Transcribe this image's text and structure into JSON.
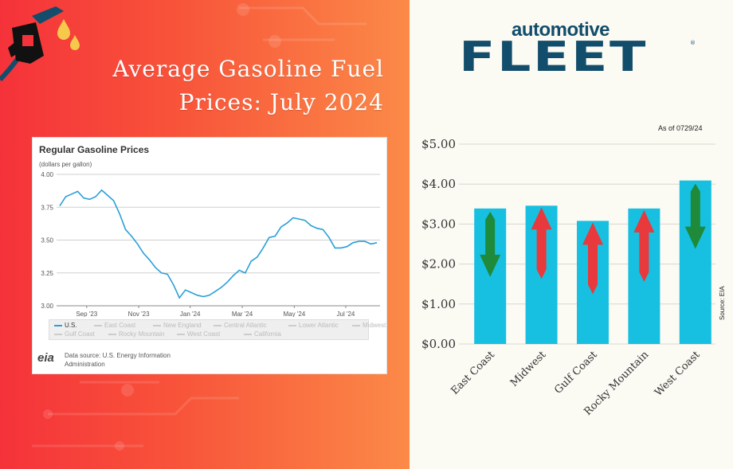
{
  "left": {
    "title_line1": "Average Gasoline Fuel",
    "title_line2": "Prices: July 2024",
    "accent_colors": [
      "#f5323a",
      "#fb8a48"
    ],
    "icons": [
      "fuel-nozzle-icon",
      "fuel-drop-icon"
    ]
  },
  "eia_card": {
    "logo": "eia",
    "source": "Data source: U.S. Energy Information Administration",
    "legend": [
      "U.S.",
      "East Coast",
      "New England",
      "Central Atlantic",
      "Lower Atlantic",
      "Midwest",
      "Gulf Coast",
      "Rocky Mountain",
      "West Coast",
      "California"
    ]
  },
  "right": {
    "brand_top": "automotive",
    "brand_main": "FLEET",
    "brand_reg": "®",
    "as_of": "As of 0729/24",
    "source": "Source: EIA",
    "colors": {
      "bar": "#17c0e0",
      "up": "#e8393c",
      "down": "#1e8a3a",
      "brand": "#124d6b"
    }
  },
  "chart_data": [
    {
      "type": "line",
      "title": "Regular Gasoline Prices",
      "subtitle": "(dollars per gallon)",
      "ylim": [
        3.0,
        4.0
      ],
      "y_ticks": [
        "4.00",
        "3.75",
        "3.50",
        "3.25",
        "3.00"
      ],
      "x_ticks": [
        "Sep '23",
        "Nov '23",
        "Jan '24",
        "Mar '24",
        "May '24",
        "Jul '24"
      ],
      "x_tick_positions": [
        4.5,
        13.2,
        21.8,
        30.5,
        39.2,
        47.8
      ],
      "grid": true,
      "series": [
        {
          "name": "U.S.",
          "color": "#2a9fd6",
          "values": [
            3.76,
            3.83,
            3.85,
            3.87,
            3.82,
            3.81,
            3.83,
            3.88,
            3.84,
            3.8,
            3.7,
            3.58,
            3.53,
            3.47,
            3.4,
            3.35,
            3.29,
            3.25,
            3.24,
            3.16,
            3.06,
            3.12,
            3.1,
            3.08,
            3.07,
            3.08,
            3.11,
            3.14,
            3.18,
            3.23,
            3.27,
            3.25,
            3.34,
            3.37,
            3.44,
            3.52,
            3.53,
            3.6,
            3.63,
            3.67,
            3.66,
            3.65,
            3.61,
            3.59,
            3.58,
            3.52,
            3.44,
            3.44,
            3.45,
            3.48,
            3.49,
            3.49,
            3.47,
            3.48
          ]
        }
      ]
    },
    {
      "type": "bar",
      "categories": [
        "East Coast",
        "Midwest",
        "Gulf Coast",
        "Rocky Mountain",
        "West Coast"
      ],
      "values": [
        3.39,
        3.46,
        3.08,
        3.39,
        4.09
      ],
      "trend": [
        "down",
        "up",
        "up",
        "up",
        "down"
      ],
      "ylim": [
        0,
        5
      ],
      "y_ticks": [
        "$0.00",
        "$1.00",
        "$2.00",
        "$3.00",
        "$4.00",
        "$5.00"
      ],
      "grid": true
    }
  ]
}
